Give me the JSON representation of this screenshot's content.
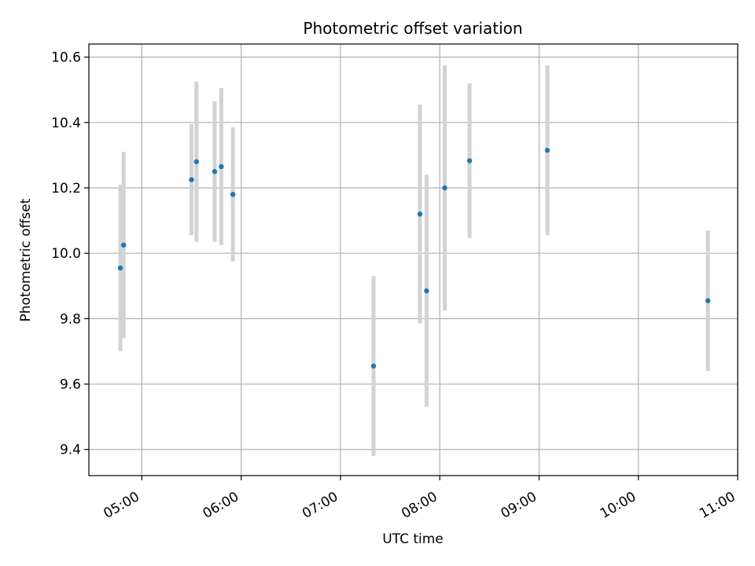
{
  "chart_data": {
    "type": "scatter",
    "title": "Photometric offset variation",
    "xlabel": "UTC time",
    "ylabel": "Photometric offset",
    "x_axis": "time",
    "xlim": [
      "04:28",
      "11:00"
    ],
    "ylim": [
      9.32,
      10.64
    ],
    "xticks": [
      "05:00",
      "06:00",
      "07:00",
      "08:00",
      "09:00",
      "10:00",
      "11:00"
    ],
    "yticks": [
      9.4,
      9.6,
      9.8,
      10.0,
      10.2,
      10.4,
      10.6
    ],
    "grid": true,
    "colors": {
      "marker": "#1f77b4",
      "errorbar": "#d3d3d3",
      "grid": "#b0b0b0"
    },
    "points": [
      {
        "x": "04:47",
        "y": 9.955,
        "yerr": 0.255
      },
      {
        "x": "04:49",
        "y": 10.025,
        "yerr": 0.285
      },
      {
        "x": "05:30",
        "y": 10.225,
        "yerr": 0.17
      },
      {
        "x": "05:33",
        "y": 10.28,
        "yerr": 0.245
      },
      {
        "x": "05:44",
        "y": 10.25,
        "yerr": 0.215
      },
      {
        "x": "05:48",
        "y": 10.265,
        "yerr": 0.24
      },
      {
        "x": "05:55",
        "y": 10.18,
        "yerr": 0.205
      },
      {
        "x": "07:20",
        "y": 9.655,
        "yerr": 0.275
      },
      {
        "x": "07:48",
        "y": 10.12,
        "yerr": 0.335
      },
      {
        "x": "07:52",
        "y": 9.885,
        "yerr": 0.355
      },
      {
        "x": "08:03",
        "y": 10.2,
        "yerr": 0.375
      },
      {
        "x": "08:18",
        "y": 10.283,
        "yerr": 0.237
      },
      {
        "x": "09:05",
        "y": 10.315,
        "yerr": 0.26
      },
      {
        "x": "10:42",
        "y": 9.855,
        "yerr": 0.215
      }
    ]
  }
}
